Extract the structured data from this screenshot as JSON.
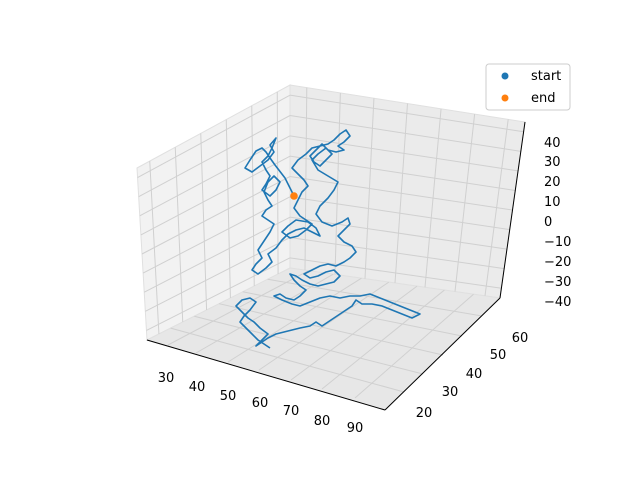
{
  "chart_data": {
    "type": "line",
    "projection": "3d",
    "title": "",
    "xlabel": "",
    "ylabel": "",
    "zlabel": "",
    "xlim": [
      25,
      95
    ],
    "ylim": [
      12,
      68
    ],
    "zlim": [
      -45,
      45
    ],
    "x_ticks": [
      "30",
      "40",
      "50",
      "60",
      "70",
      "80",
      "90"
    ],
    "y_ticks": [
      "20",
      "30",
      "40",
      "50",
      "60"
    ],
    "z_ticks": [
      "40",
      "30",
      "20",
      "10",
      "0",
      "−10",
      "−20",
      "−30",
      "−40"
    ],
    "grid": true,
    "legend_placement": "top-right",
    "legend": [
      {
        "label": "start",
        "marker": "dot",
        "color": "#1f77b4"
      },
      {
        "label": "end",
        "marker": "dot",
        "color": "#ff7f0e"
      }
    ],
    "series_color": "#1f77b4",
    "start_point": {
      "x": 50,
      "y": 45,
      "z": 0
    },
    "end_point": {
      "x": 46,
      "y": 55,
      "z": 20
    },
    "path_points_image_estimate": [
      [
        294,
        196
      ],
      [
        290,
        188
      ],
      [
        285,
        178
      ],
      [
        275,
        165
      ],
      [
        270,
        158
      ],
      [
        266,
        152
      ],
      [
        262,
        148
      ],
      [
        256,
        151
      ],
      [
        250,
        160
      ],
      [
        245,
        168
      ],
      [
        252,
        172
      ],
      [
        260,
        166
      ],
      [
        268,
        160
      ],
      [
        274,
        152
      ],
      [
        270,
        145
      ],
      [
        276,
        138
      ],
      [
        272,
        148
      ],
      [
        268,
        156
      ],
      [
        262,
        162
      ],
      [
        266,
        170
      ],
      [
        270,
        176
      ],
      [
        266,
        184
      ],
      [
        262,
        190
      ],
      [
        270,
        196
      ],
      [
        276,
        190
      ],
      [
        280,
        182
      ],
      [
        274,
        176
      ],
      [
        268,
        182
      ],
      [
        264,
        192
      ],
      [
        268,
        200
      ],
      [
        272,
        206
      ],
      [
        266,
        210
      ],
      [
        262,
        216
      ],
      [
        268,
        220
      ],
      [
        274,
        224
      ],
      [
        270,
        232
      ],
      [
        266,
        238
      ],
      [
        262,
        244
      ],
      [
        258,
        250
      ],
      [
        262,
        258
      ],
      [
        256,
        264
      ],
      [
        252,
        270
      ],
      [
        258,
        274
      ],
      [
        266,
        268
      ],
      [
        272,
        262
      ],
      [
        268,
        254
      ],
      [
        276,
        248
      ],
      [
        282,
        240
      ],
      [
        288,
        234
      ],
      [
        296,
        230
      ],
      [
        304,
        228
      ],
      [
        312,
        232
      ],
      [
        320,
        236
      ],
      [
        316,
        228
      ],
      [
        308,
        222
      ],
      [
        296,
        220
      ],
      [
        288,
        226
      ],
      [
        282,
        232
      ],
      [
        290,
        238
      ],
      [
        298,
        236
      ],
      [
        306,
        230
      ],
      [
        312,
        224
      ],
      [
        300,
        216
      ],
      [
        294,
        208
      ],
      [
        298,
        200
      ],
      [
        302,
        192
      ],
      [
        308,
        186
      ],
      [
        304,
        180
      ],
      [
        298,
        174
      ],
      [
        292,
        168
      ],
      [
        298,
        160
      ],
      [
        306,
        154
      ],
      [
        312,
        148
      ],
      [
        320,
        146
      ],
      [
        328,
        144
      ],
      [
        334,
        140
      ],
      [
        340,
        134
      ],
      [
        346,
        130
      ],
      [
        350,
        136
      ],
      [
        344,
        142
      ],
      [
        338,
        146
      ],
      [
        344,
        150
      ],
      [
        336,
        152
      ],
      [
        328,
        150
      ],
      [
        322,
        144
      ],
      [
        316,
        150
      ],
      [
        310,
        156
      ],
      [
        314,
        162
      ],
      [
        320,
        166
      ],
      [
        326,
        160
      ],
      [
        332,
        154
      ],
      [
        326,
        148
      ],
      [
        318,
        154
      ],
      [
        312,
        160
      ],
      [
        318,
        170
      ],
      [
        328,
        176
      ],
      [
        338,
        182
      ],
      [
        334,
        190
      ],
      [
        328,
        198
      ],
      [
        320,
        206
      ],
      [
        316,
        214
      ],
      [
        322,
        222
      ],
      [
        332,
        226
      ],
      [
        342,
        222
      ],
      [
        348,
        218
      ],
      [
        350,
        224
      ],
      [
        344,
        230
      ],
      [
        338,
        236
      ],
      [
        344,
        242
      ],
      [
        352,
        246
      ],
      [
        356,
        252
      ],
      [
        350,
        258
      ],
      [
        344,
        262
      ],
      [
        336,
        266
      ],
      [
        328,
        264
      ],
      [
        320,
        266
      ],
      [
        312,
        270
      ],
      [
        304,
        274
      ],
      [
        310,
        278
      ],
      [
        318,
        276
      ],
      [
        326,
        272
      ],
      [
        334,
        270
      ],
      [
        340,
        276
      ],
      [
        334,
        282
      ],
      [
        326,
        284
      ],
      [
        318,
        286
      ],
      [
        310,
        284
      ],
      [
        302,
        280
      ],
      [
        296,
        276
      ],
      [
        290,
        274
      ],
      [
        294,
        280
      ],
      [
        300,
        286
      ],
      [
        306,
        290
      ],
      [
        300,
        296
      ],
      [
        294,
        300
      ],
      [
        286,
        298
      ],
      [
        280,
        294
      ],
      [
        274,
        296
      ],
      [
        282,
        300
      ],
      [
        292,
        304
      ],
      [
        300,
        306
      ],
      [
        310,
        302
      ],
      [
        320,
        298
      ],
      [
        330,
        296
      ],
      [
        340,
        298
      ],
      [
        350,
        296
      ],
      [
        360,
        296
      ],
      [
        370,
        294
      ],
      [
        380,
        298
      ],
      [
        390,
        302
      ],
      [
        400,
        306
      ],
      [
        410,
        310
      ],
      [
        420,
        314
      ],
      [
        412,
        318
      ],
      [
        402,
        314
      ],
      [
        392,
        310
      ],
      [
        382,
        306
      ],
      [
        372,
        304
      ],
      [
        362,
        304
      ],
      [
        356,
        300
      ],
      [
        352,
        306
      ],
      [
        346,
        310
      ],
      [
        340,
        314
      ],
      [
        334,
        318
      ],
      [
        328,
        322
      ],
      [
        322,
        326
      ],
      [
        316,
        322
      ],
      [
        310,
        326
      ],
      [
        300,
        328
      ],
      [
        292,
        330
      ],
      [
        284,
        332
      ],
      [
        276,
        334
      ],
      [
        268,
        338
      ],
      [
        262,
        342
      ],
      [
        256,
        346
      ],
      [
        262,
        340
      ],
      [
        268,
        334
      ],
      [
        260,
        328
      ],
      [
        254,
        322
      ],
      [
        248,
        318
      ],
      [
        242,
        312
      ],
      [
        236,
        306
      ],
      [
        242,
        300
      ],
      [
        250,
        298
      ],
      [
        256,
        302
      ],
      [
        250,
        310
      ],
      [
        244,
        316
      ],
      [
        240,
        322
      ],
      [
        246,
        328
      ],
      [
        252,
        334
      ],
      [
        258,
        340
      ],
      [
        264,
        344
      ],
      [
        270,
        348
      ]
    ]
  }
}
